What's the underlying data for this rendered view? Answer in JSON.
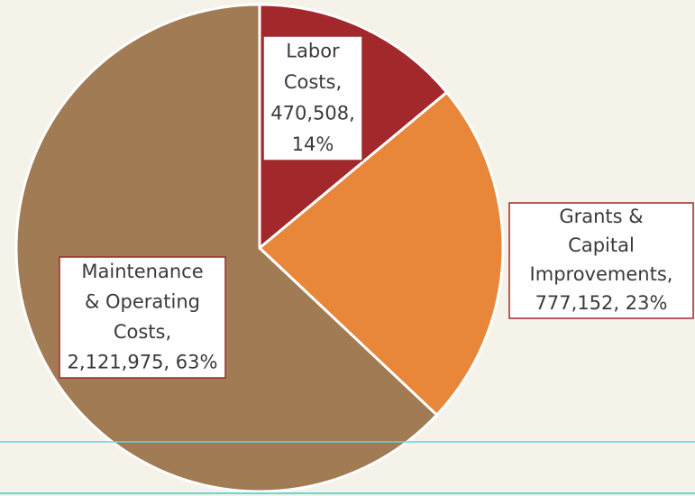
{
  "chart_data": {
    "type": "pie",
    "values": [
      470508,
      777152,
      2121975
    ],
    "colors": [
      "#a3282b",
      "#e8873a",
      "#a07b54"
    ],
    "data_labels": [
      [
        "Labor",
        "Costs,",
        "470,508,",
        "14%"
      ],
      [
        "Grants &",
        "Capital",
        "Improvements,",
        "777,152, 23%"
      ],
      [
        "Maintenance",
        "& Operating",
        "Costs,",
        "2,121,975, 63%"
      ]
    ]
  }
}
